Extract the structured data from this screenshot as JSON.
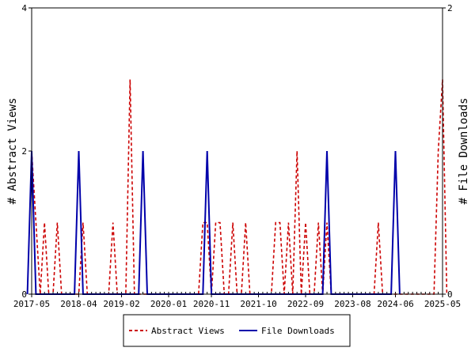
{
  "chart_data": {
    "type": "line",
    "title": "",
    "xlabel": "",
    "ylabel": "# Abstract Views",
    "y2label": "# File Downloads",
    "x_ticks": [
      "2017-05",
      "2018-04",
      "2019-02",
      "2020-01",
      "2020-11",
      "2021-10",
      "2022-09",
      "2023-08",
      "2024-06",
      "2025-05"
    ],
    "x_range": [
      "2017-05",
      "2025-05"
    ],
    "ylim": [
      0,
      4
    ],
    "y_ticks": [
      0,
      2,
      4
    ],
    "y2lim": [
      0,
      2
    ],
    "y2_ticks": [
      0,
      2
    ],
    "grid": false,
    "legend_position": "bottom",
    "series": [
      {
        "name": "Abstract Views",
        "axis": "left",
        "color": "#cc0000",
        "style": "dashed",
        "points": [
          [
            "2017-05",
            2
          ],
          [
            "2017-06",
            1
          ],
          [
            "2017-07",
            0
          ],
          [
            "2017-08",
            1
          ],
          [
            "2017-09",
            0
          ],
          [
            "2017-10",
            0
          ],
          [
            "2017-11",
            1
          ],
          [
            "2017-12",
            0
          ],
          [
            "2018-04",
            0
          ],
          [
            "2018-05",
            1
          ],
          [
            "2018-06",
            0
          ],
          [
            "2018-11",
            0
          ],
          [
            "2018-12",
            1
          ],
          [
            "2019-01",
            0
          ],
          [
            "2019-03",
            0
          ],
          [
            "2019-04",
            3
          ],
          [
            "2019-05",
            0
          ],
          [
            "2020-08",
            0
          ],
          [
            "2020-09",
            1
          ],
          [
            "2020-10",
            1
          ],
          [
            "2020-11",
            0
          ],
          [
            "2020-12",
            1
          ],
          [
            "2021-01",
            1
          ],
          [
            "2021-02",
            0
          ],
          [
            "2021-03",
            0
          ],
          [
            "2021-04",
            1
          ],
          [
            "2021-05",
            0
          ],
          [
            "2021-06",
            0
          ],
          [
            "2021-07",
            1
          ],
          [
            "2021-08",
            0
          ],
          [
            "2022-01",
            0
          ],
          [
            "2022-02",
            1
          ],
          [
            "2022-03",
            1
          ],
          [
            "2022-04",
            0
          ],
          [
            "2022-05",
            1
          ],
          [
            "2022-06",
            0
          ],
          [
            "2022-07",
            2
          ],
          [
            "2022-08",
            0
          ],
          [
            "2022-09",
            1
          ],
          [
            "2022-10",
            0
          ],
          [
            "2022-11",
            0
          ],
          [
            "2022-12",
            1
          ],
          [
            "2023-01",
            0
          ],
          [
            "2023-02",
            1
          ],
          [
            "2023-03",
            0
          ],
          [
            "2024-01",
            0
          ],
          [
            "2024-02",
            1
          ],
          [
            "2024-03",
            0
          ],
          [
            "2025-03",
            0
          ],
          [
            "2025-04",
            2
          ],
          [
            "2025-05",
            3
          ],
          [
            "2025-06",
            0
          ]
        ]
      },
      {
        "name": "File Downloads",
        "axis": "right",
        "color": "#0000aa",
        "style": "solid",
        "points": [
          [
            "2017-04",
            0
          ],
          [
            "2017-05",
            1
          ],
          [
            "2017-06",
            0
          ],
          [
            "2018-03",
            0
          ],
          [
            "2018-04",
            1
          ],
          [
            "2018-05",
            0
          ],
          [
            "2019-06",
            0
          ],
          [
            "2019-07",
            1
          ],
          [
            "2019-08",
            0
          ],
          [
            "2020-09",
            0
          ],
          [
            "2020-10",
            1
          ],
          [
            "2020-11",
            0
          ],
          [
            "2023-01",
            0
          ],
          [
            "2023-02",
            1
          ],
          [
            "2023-03",
            0
          ],
          [
            "2024-05",
            0
          ],
          [
            "2024-06",
            1
          ],
          [
            "2024-07",
            0
          ]
        ]
      }
    ]
  }
}
